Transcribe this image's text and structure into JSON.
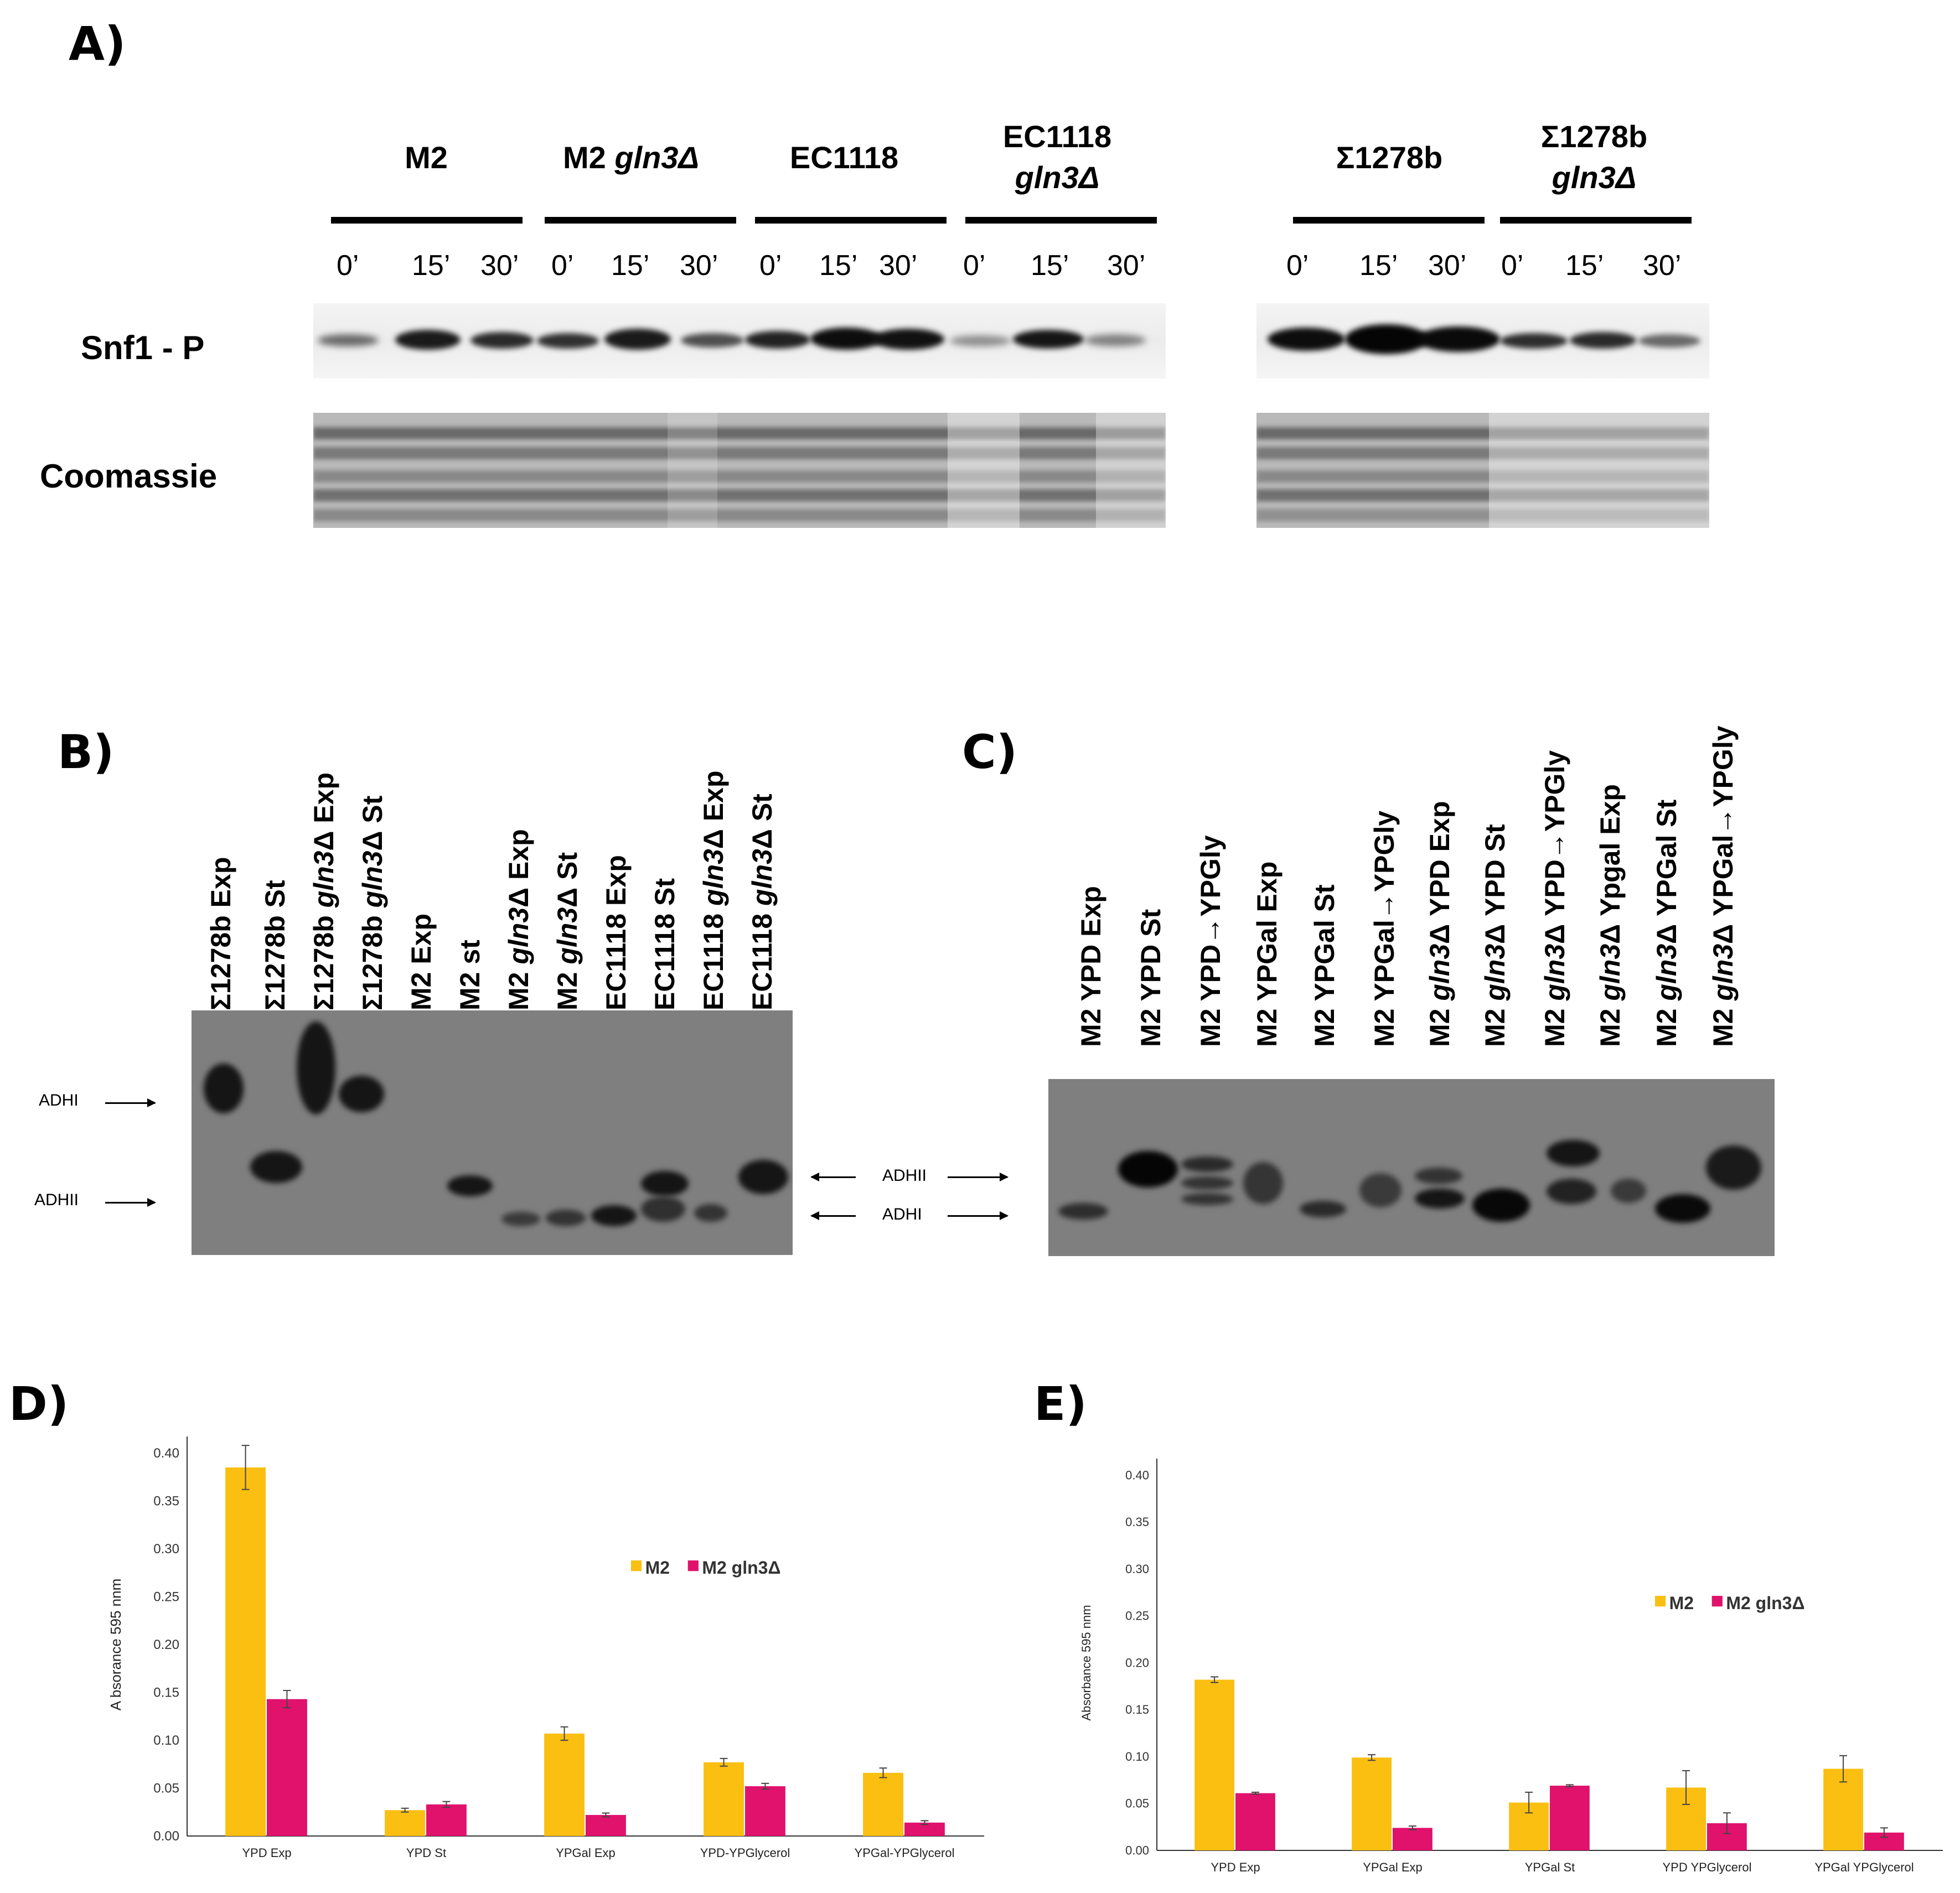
{
  "panels": {
    "A": "A)",
    "B": "B)",
    "C": "C)",
    "D": "D)",
    "E": "E)"
  },
  "panelA": {
    "groups": [
      {
        "name": "M2",
        "suffix": ""
      },
      {
        "name": "M2 ",
        "suffix": "gln3Δ"
      },
      {
        "name": "EC1118",
        "suffix": ""
      },
      {
        "name": "EC1118",
        "suffix": "gln3Δ"
      },
      {
        "name": "Σ1278b",
        "suffix": ""
      },
      {
        "name": "Σ1278b",
        "suffix": "gln3Δ"
      }
    ],
    "timepoints": [
      "0’",
      "15’",
      "30’"
    ],
    "row_snf1": "Snf1 - P",
    "row_coomassie": "Coomassie"
  },
  "panelB": {
    "lanes": [
      {
        "a": "Σ1278b Exp",
        "b": "",
        "c": ""
      },
      {
        "a": "Σ1278b St",
        "b": "",
        "c": ""
      },
      {
        "a": "Σ1278b ",
        "b": "gln3",
        "c": "Δ Exp"
      },
      {
        "a": "Σ1278b ",
        "b": "gln3",
        "c": "Δ St"
      },
      {
        "a": "M2 Exp",
        "b": "",
        "c": ""
      },
      {
        "a": "M2 st",
        "b": "",
        "c": ""
      },
      {
        "a": "M2 ",
        "b": "gln3",
        "c": "Δ Exp"
      },
      {
        "a": "M2 ",
        "b": "gln3",
        "c": "Δ St"
      },
      {
        "a": "EC1118 Exp",
        "b": "",
        "c": ""
      },
      {
        "a": "EC1118 St",
        "b": "",
        "c": ""
      },
      {
        "a": "EC1118 ",
        "b": "gln3",
        "c": "Δ Exp"
      },
      {
        "a": "EC1118 ",
        "b": "gln3",
        "c": "Δ St"
      }
    ],
    "marker_top": "ADHI",
    "marker_bottom": "ADHII"
  },
  "panelC": {
    "lanes": [
      {
        "a": "M2 YPD Exp",
        "b": "",
        "c": ""
      },
      {
        "a": "M2 YPD St",
        "b": "",
        "c": ""
      },
      {
        "a": "M2 YPD→YPGly",
        "b": "",
        "c": ""
      },
      {
        "a": "M2 YPGal Exp",
        "b": "",
        "c": ""
      },
      {
        "a": "M2 YPGal St",
        "b": "",
        "c": ""
      },
      {
        "a": "M2 YPGal→YPGly",
        "b": "",
        "c": ""
      },
      {
        "a": "M2 ",
        "b": "gln3",
        "c": "Δ YPD Exp"
      },
      {
        "a": "M2 ",
        "b": "gln3",
        "c": "Δ YPD St"
      },
      {
        "a": "M2 ",
        "b": "gln3",
        "c": "Δ YPD→YPGly"
      },
      {
        "a": "M2 ",
        "b": "gln3",
        "c": "Δ Ypgal Exp"
      },
      {
        "a": "M2 ",
        "b": "gln3",
        "c": "Δ YPGal St"
      },
      {
        "a": "M2 ",
        "b": "gln3",
        "c": "Δ YPGal→YPGly"
      }
    ],
    "marker_top": "ADHII",
    "marker_bottom": "ADHI"
  },
  "chart_data": [
    {
      "type": "bar",
      "panel": "D",
      "title": "",
      "xlabel": "",
      "ylabel": "A bsorance  595 nnm",
      "ylim": [
        0,
        0.4
      ],
      "yticks": [
        "0.00",
        "0.05",
        "0.10",
        "0.15",
        "0.20",
        "0.25",
        "0.30",
        "0.35",
        "0.40"
      ],
      "categories": [
        "YPD Exp",
        "YPD St",
        "YPGal Exp",
        "YPD-YPGlycerol",
        "YPGal-YPGlycerol"
      ],
      "series": [
        {
          "name": "M2",
          "color": "#fbbf12",
          "values": [
            0.385,
            0.027,
            0.107,
            0.077,
            0.066
          ],
          "errors": [
            0.023,
            0.002,
            0.007,
            0.004,
            0.005
          ]
        },
        {
          "name": "M2 gln3Δ",
          "color": "#e0126c",
          "values": [
            0.143,
            0.033,
            0.022,
            0.052,
            0.014
          ],
          "errors": [
            0.009,
            0.003,
            0.002,
            0.003,
            0.002
          ]
        }
      ],
      "legend": "right"
    },
    {
      "type": "bar",
      "panel": "E",
      "title": "",
      "xlabel": "",
      "ylabel": "Absorbance  595 nnm",
      "ylim": [
        0,
        0.4
      ],
      "yticks": [
        "0.00",
        "0.05",
        "0.10",
        "0.15",
        "0.20",
        "0.25",
        "0.30",
        "0.35",
        "0.40"
      ],
      "categories": [
        "YPD Exp",
        "YPGal Exp",
        "YPGal St",
        "YPD YPGlycerol",
        "YPGal YPGlycerol"
      ],
      "series": [
        {
          "name": "M2",
          "color": "#fbbf12",
          "values": [
            0.182,
            0.099,
            0.051,
            0.067,
            0.087
          ],
          "errors": [
            0.003,
            0.003,
            0.011,
            0.018,
            0.014
          ]
        },
        {
          "name": "M2 gln3Δ",
          "color": "#e0126c",
          "values": [
            0.061,
            0.024,
            0.069,
            0.029,
            0.019
          ],
          "errors": [
            0.001,
            0.002,
            0.001,
            0.011,
            0.005
          ]
        }
      ],
      "legend": "right"
    }
  ]
}
